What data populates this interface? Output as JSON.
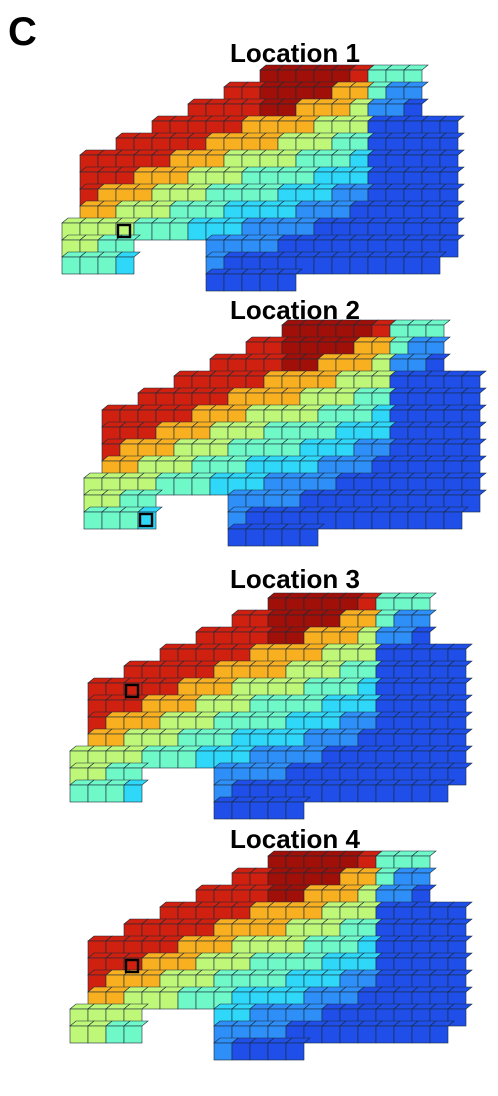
{
  "figure": {
    "panel_letter": "C",
    "panels": [
      {
        "title": "Location 1",
        "seed_row": 9,
        "seed_col": 3
      },
      {
        "title": "Location 2",
        "seed_row": 11,
        "seed_col": 3
      },
      {
        "title": "Location 3",
        "seed_row": 5,
        "seed_col": 3
      },
      {
        "title": "Location 4",
        "seed_row": 6,
        "seed_col": 3
      }
    ],
    "colormap": [
      "#0000c8",
      "#1f4fe8",
      "#2f8ff8",
      "#2fd8f8",
      "#6ff8c8",
      "#bff878",
      "#f8f030",
      "#f8b020",
      "#f06010",
      "#d02010",
      "#a01008"
    ]
  }
}
